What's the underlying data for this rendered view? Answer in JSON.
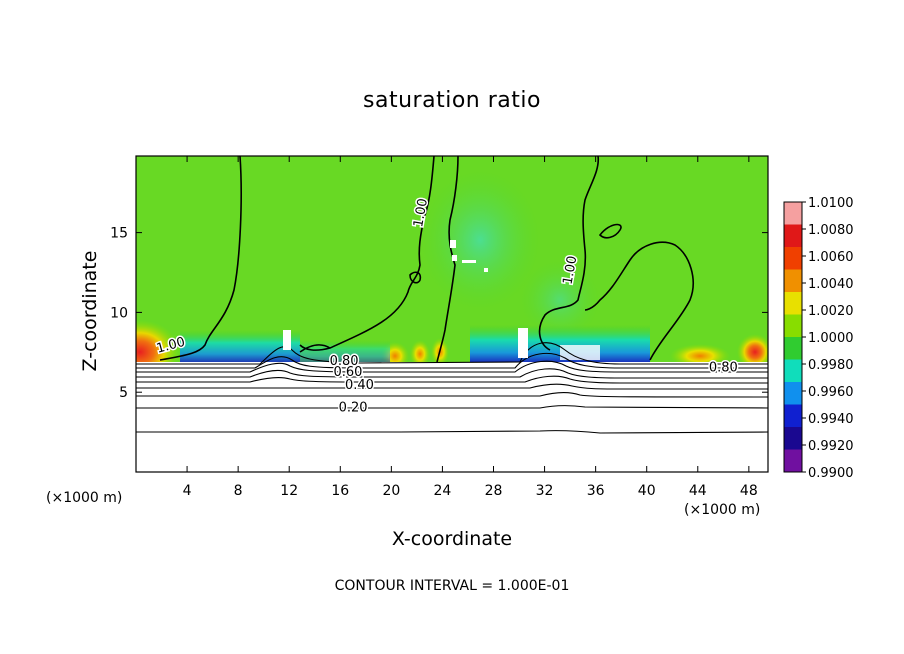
{
  "chart_data": {
    "type": "heatmap",
    "title": "saturation ratio",
    "xlabel": "X-coordinate",
    "ylabel": "Z-coordinate",
    "x_unit_label": "(×1000 m)",
    "note": "CONTOUR INTERVAL = 1.000E-01",
    "x_ticks": [
      4,
      8,
      12,
      16,
      20,
      24,
      28,
      32,
      36,
      40,
      44,
      48
    ],
    "y_ticks": [
      5,
      10,
      15
    ],
    "xlim": [
      0,
      49.5
    ],
    "ylim": [
      0,
      19.8
    ],
    "colorbar": {
      "levels": [
        "1.0100",
        "1.0080",
        "1.0060",
        "1.0040",
        "1.0020",
        "1.0000",
        "0.9980",
        "0.9960",
        "0.9940",
        "0.9920",
        "0.9900"
      ],
      "colors": [
        "#f5a0a0",
        "#e01818",
        "#f04000",
        "#f09000",
        "#e8e000",
        "#88dd00",
        "#30cc30",
        "#10ddbb",
        "#1090ee",
        "#1020d0",
        "#1a0890",
        "#7010a0"
      ]
    },
    "contour_labels": [
      {
        "text": "1.00",
        "x": 2.8,
        "y": 7.7,
        "angle": -15
      },
      {
        "text": "1.00",
        "x": 22.6,
        "y": 16.2,
        "angle": -80
      },
      {
        "text": "1.00",
        "x": 34.3,
        "y": 12.6,
        "angle": -80
      },
      {
        "text": "0.80",
        "x": 16.3,
        "y": 6.7,
        "angle": 0
      },
      {
        "text": "0.60",
        "x": 16.6,
        "y": 6.0,
        "angle": 0
      },
      {
        "text": "0.40",
        "x": 17.5,
        "y": 5.2,
        "angle": 0
      },
      {
        "text": "0.20",
        "x": 17.0,
        "y": 3.8,
        "angle": 0
      },
      {
        "text": "0.80",
        "x": 46.0,
        "y": 6.3,
        "angle": 0
      }
    ]
  }
}
